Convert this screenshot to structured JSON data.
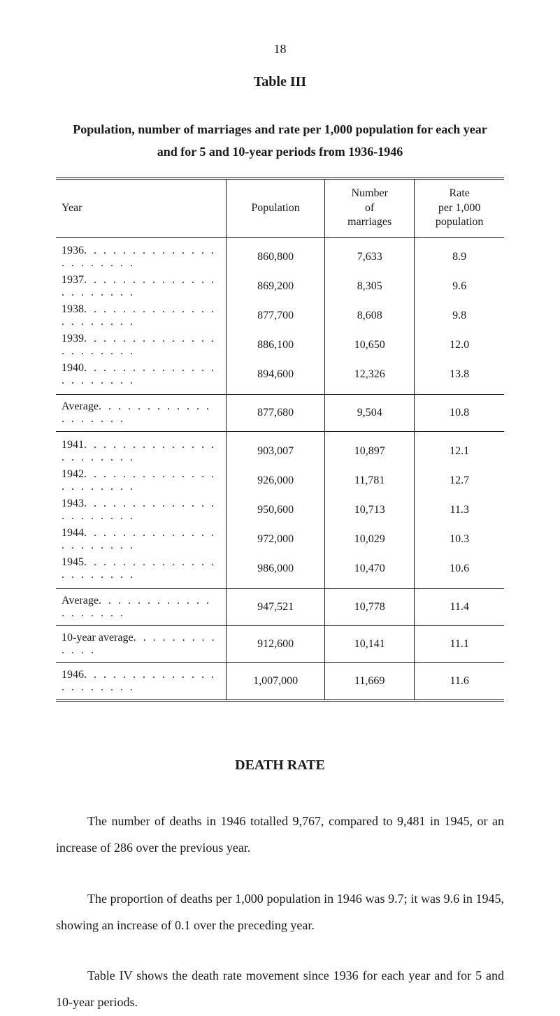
{
  "page_number": "18",
  "table_title": "Table III",
  "table_caption": "Population, number of marriages and rate per 1,000 population for each year and for 5 and 10-year periods from 1936-1946",
  "columns": {
    "year": "Year",
    "population": "Population",
    "marriages": "Number of marriages",
    "rate": "Rate per 1,000 population"
  },
  "group1": [
    {
      "year": "1936",
      "population": "860,800",
      "marriages": "7,633",
      "rate": "8.9"
    },
    {
      "year": "1937",
      "population": "869,200",
      "marriages": "8,305",
      "rate": "9.6"
    },
    {
      "year": "1938",
      "population": "877,700",
      "marriages": "8,608",
      "rate": "9.8"
    },
    {
      "year": "1939",
      "population": "886,100",
      "marriages": "10,650",
      "rate": "12.0"
    },
    {
      "year": "1940",
      "population": "894,600",
      "marriages": "12,326",
      "rate": "13.8"
    }
  ],
  "average1": {
    "label": "Average",
    "population": "877,680",
    "marriages": "9,504",
    "rate": "10.8"
  },
  "group2": [
    {
      "year": "1941",
      "population": "903,007",
      "marriages": "10,897",
      "rate": "12.1"
    },
    {
      "year": "1942",
      "population": "926,000",
      "marriages": "11,781",
      "rate": "12.7"
    },
    {
      "year": "1943",
      "population": "950,600",
      "marriages": "10,713",
      "rate": "11.3"
    },
    {
      "year": "1944",
      "population": "972,000",
      "marriages": "10,029",
      "rate": "10.3"
    },
    {
      "year": "1945",
      "population": "986,000",
      "marriages": "10,470",
      "rate": "10.6"
    }
  ],
  "average2": {
    "label": "Average",
    "population": "947,521",
    "marriages": "10,778",
    "rate": "11.4"
  },
  "ten_year": {
    "label": "10-year average",
    "population": "912,600",
    "marriages": "10,141",
    "rate": "11.1"
  },
  "final": {
    "year": "1946",
    "population": "1,007,000",
    "marriages": "11,669",
    "rate": "11.6"
  },
  "section_heading": "DEATH RATE",
  "para1": "The number of deaths in 1946 totalled 9,767, compared to 9,481 in 1945, or an increase of 286 over the previous year.",
  "para2": "The proportion of deaths per 1,000 population in 1946 was 9.7; it was 9.6 in 1945, showing an increase of 0.1 over the preceding year.",
  "para3": "Table IV shows the death rate movement since 1936 for each year and for 5 and 10-year periods.",
  "dots_long": ". . . . . . . . . . . . . . . . . . . . . .",
  "dots_med": ". . . . . . . . . . . . . . . . . . .",
  "dots_short": ". . . . . . . . . . . . ."
}
